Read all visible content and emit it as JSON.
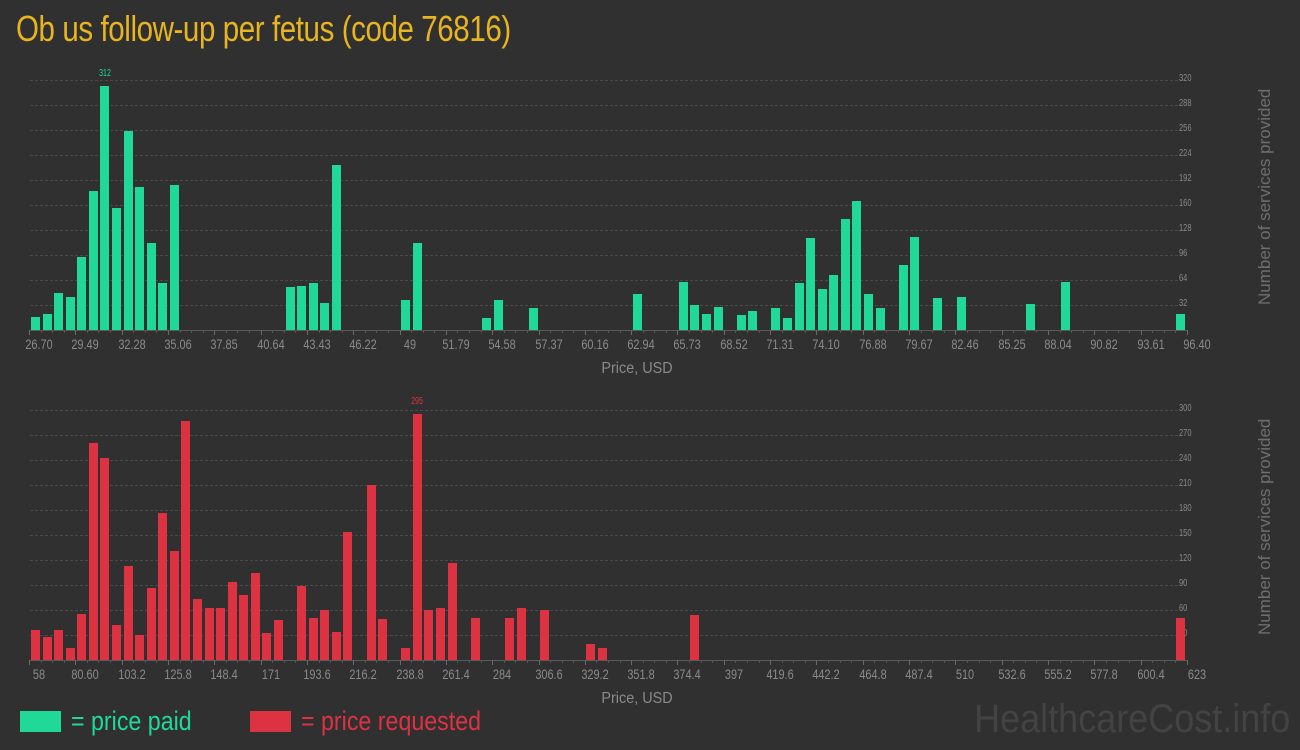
{
  "title": "Ob us follow-up per fetus (code 76816)",
  "colors": {
    "paid": "#20d999",
    "requested": "#dc3242",
    "title": "#e8b421"
  },
  "legend": {
    "paid_label": "= price paid",
    "requested_label": "= price requested"
  },
  "watermark": "HealthcareCost.info",
  "chart_data": [
    {
      "type": "bar",
      "title": "price paid",
      "xlabel": "Price, USD",
      "ylabel": "Number of services provided",
      "ylim": [
        0,
        320
      ],
      "yticks": [
        32,
        64,
        96,
        128,
        160,
        192,
        224,
        256,
        288,
        320
      ],
      "xticks": [
        "26.70",
        "29.49",
        "32.28",
        "35.06",
        "37.85",
        "40.64",
        "43.43",
        "46.22",
        "49",
        "51.79",
        "54.58",
        "57.37",
        "60.16",
        "62.94",
        "65.73",
        "68.52",
        "71.31",
        "74.10",
        "76.88",
        "79.67",
        "82.46",
        "85.25",
        "88.04",
        "90.82",
        "93.61",
        "96.40"
      ],
      "x_range": [
        26.7,
        96.4
      ],
      "bins": 100,
      "peak_label": "312",
      "bars": [
        {
          "slot": 0,
          "value": 17
        },
        {
          "slot": 1,
          "value": 20
        },
        {
          "slot": 2,
          "value": 47
        },
        {
          "slot": 3,
          "value": 42
        },
        {
          "slot": 4,
          "value": 94
        },
        {
          "slot": 5,
          "value": 178
        },
        {
          "slot": 6,
          "value": 312
        },
        {
          "slot": 7,
          "value": 156
        },
        {
          "slot": 8,
          "value": 255
        },
        {
          "slot": 9,
          "value": 183
        },
        {
          "slot": 10,
          "value": 112
        },
        {
          "slot": 11,
          "value": 60
        },
        {
          "slot": 12,
          "value": 186
        },
        {
          "slot": 22,
          "value": 55
        },
        {
          "slot": 23,
          "value": 56
        },
        {
          "slot": 24,
          "value": 60
        },
        {
          "slot": 25,
          "value": 34
        },
        {
          "slot": 26,
          "value": 211
        },
        {
          "slot": 32,
          "value": 38
        },
        {
          "slot": 33,
          "value": 112
        },
        {
          "slot": 39,
          "value": 15
        },
        {
          "slot": 40,
          "value": 39
        },
        {
          "slot": 43,
          "value": 28
        },
        {
          "slot": 52,
          "value": 46
        },
        {
          "slot": 56,
          "value": 61
        },
        {
          "slot": 57,
          "value": 32
        },
        {
          "slot": 58,
          "value": 21
        },
        {
          "slot": 59,
          "value": 29
        },
        {
          "slot": 61,
          "value": 19
        },
        {
          "slot": 62,
          "value": 24
        },
        {
          "slot": 64,
          "value": 28
        },
        {
          "slot": 65,
          "value": 15
        },
        {
          "slot": 66,
          "value": 60
        },
        {
          "slot": 67,
          "value": 118
        },
        {
          "slot": 68,
          "value": 53
        },
        {
          "slot": 69,
          "value": 70
        },
        {
          "slot": 70,
          "value": 142
        },
        {
          "slot": 71,
          "value": 165
        },
        {
          "slot": 72,
          "value": 46
        },
        {
          "slot": 73,
          "value": 28
        },
        {
          "slot": 75,
          "value": 83
        },
        {
          "slot": 76,
          "value": 119
        },
        {
          "slot": 78,
          "value": 41
        },
        {
          "slot": 80,
          "value": 42
        },
        {
          "slot": 86,
          "value": 33
        },
        {
          "slot": 89,
          "value": 61
        },
        {
          "slot": 99,
          "value": 20
        }
      ]
    },
    {
      "type": "bar",
      "title": "price requested",
      "xlabel": "Price, USD",
      "ylabel": "Number of services provided",
      "ylim": [
        0,
        300
      ],
      "yticks": [
        30,
        60,
        90,
        120,
        150,
        180,
        210,
        240,
        270,
        300
      ],
      "xticks": [
        "58",
        "80.60",
        "103.2",
        "125.8",
        "148.4",
        "171",
        "193.6",
        "216.2",
        "238.8",
        "261.4",
        "284",
        "306.6",
        "329.2",
        "351.8",
        "374.4",
        "397",
        "419.6",
        "442.2",
        "464.8",
        "487.4",
        "510",
        "532.6",
        "555.2",
        "577.8",
        "600.4",
        "623"
      ],
      "x_range": [
        58,
        623
      ],
      "bins": 100,
      "peak_label": "295",
      "bars": [
        {
          "slot": 0,
          "value": 36
        },
        {
          "slot": 1,
          "value": 28
        },
        {
          "slot": 2,
          "value": 36
        },
        {
          "slot": 3,
          "value": 15
        },
        {
          "slot": 4,
          "value": 55
        },
        {
          "slot": 5,
          "value": 260
        },
        {
          "slot": 6,
          "value": 243
        },
        {
          "slot": 7,
          "value": 42
        },
        {
          "slot": 8,
          "value": 113
        },
        {
          "slot": 9,
          "value": 30
        },
        {
          "slot": 10,
          "value": 87
        },
        {
          "slot": 11,
          "value": 176
        },
        {
          "slot": 12,
          "value": 131
        },
        {
          "slot": 13,
          "value": 287
        },
        {
          "slot": 14,
          "value": 73
        },
        {
          "slot": 15,
          "value": 62
        },
        {
          "slot": 16,
          "value": 62
        },
        {
          "slot": 17,
          "value": 94
        },
        {
          "slot": 18,
          "value": 78
        },
        {
          "slot": 19,
          "value": 105
        },
        {
          "slot": 20,
          "value": 33
        },
        {
          "slot": 21,
          "value": 48
        },
        {
          "slot": 23,
          "value": 89
        },
        {
          "slot": 24,
          "value": 51
        },
        {
          "slot": 25,
          "value": 60
        },
        {
          "slot": 26,
          "value": 34
        },
        {
          "slot": 27,
          "value": 154
        },
        {
          "slot": 29,
          "value": 210
        },
        {
          "slot": 30,
          "value": 49
        },
        {
          "slot": 32,
          "value": 15
        },
        {
          "slot": 33,
          "value": 295
        },
        {
          "slot": 34,
          "value": 60
        },
        {
          "slot": 35,
          "value": 62
        },
        {
          "slot": 36,
          "value": 116
        },
        {
          "slot": 38,
          "value": 50
        },
        {
          "slot": 41,
          "value": 50
        },
        {
          "slot": 42,
          "value": 62
        },
        {
          "slot": 44,
          "value": 60
        },
        {
          "slot": 48,
          "value": 19
        },
        {
          "slot": 49,
          "value": 14
        },
        {
          "slot": 57,
          "value": 54
        },
        {
          "slot": 99,
          "value": 51
        }
      ]
    }
  ]
}
